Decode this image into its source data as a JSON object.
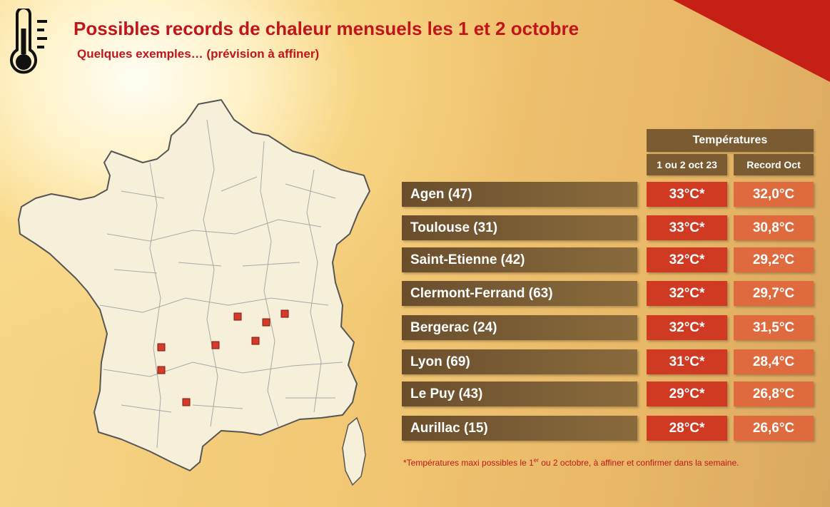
{
  "title": "Possibles records de chaleur mensuels les 1 et 2 octobre",
  "subtitle": "Quelques exemples… (prévision à affiner)",
  "table": {
    "header": "Températures",
    "col_forecast": "1 ou 2 oct 23",
    "col_record": "Record Oct",
    "rows": [
      {
        "city": "Agen (47)",
        "forecast": "33°C*",
        "record": "32,0°C"
      },
      {
        "city": "Toulouse (31)",
        "forecast": "33°C*",
        "record": "30,8°C"
      },
      {
        "city": "Saint-Etienne (42)",
        "forecast": "32°C*",
        "record": "29,2°C"
      },
      {
        "city": "Clermont-Ferrand (63)",
        "forecast": "32°C*",
        "record": "29,7°C"
      },
      {
        "city": "Bergerac (24)",
        "forecast": "32°C*",
        "record": "31,5°C"
      },
      {
        "city": "Lyon (69)",
        "forecast": "31°C*",
        "record": "28,4°C"
      },
      {
        "city": "Le Puy (43)",
        "forecast": "29°C*",
        "record": "26,8°C"
      },
      {
        "city": "Aurillac (15)",
        "forecast": "28°C*",
        "record": "26,6°C"
      }
    ]
  },
  "footnote": {
    "before": "*Températures maxi possibles le 1",
    "sup": "er",
    "after": " ou 2 octobre, à affiner et confirmer dans la semaine."
  },
  "colors": {
    "title": "#c0151a",
    "header_bg": "#7a5b32",
    "forecast_bg": "#d13a22",
    "record_bg": "#de6a3e",
    "marker": "#d63a2a",
    "corner": "#c51f16"
  },
  "icons": {
    "thermometer": "thermometer-icon",
    "map": "france-departments-map"
  }
}
